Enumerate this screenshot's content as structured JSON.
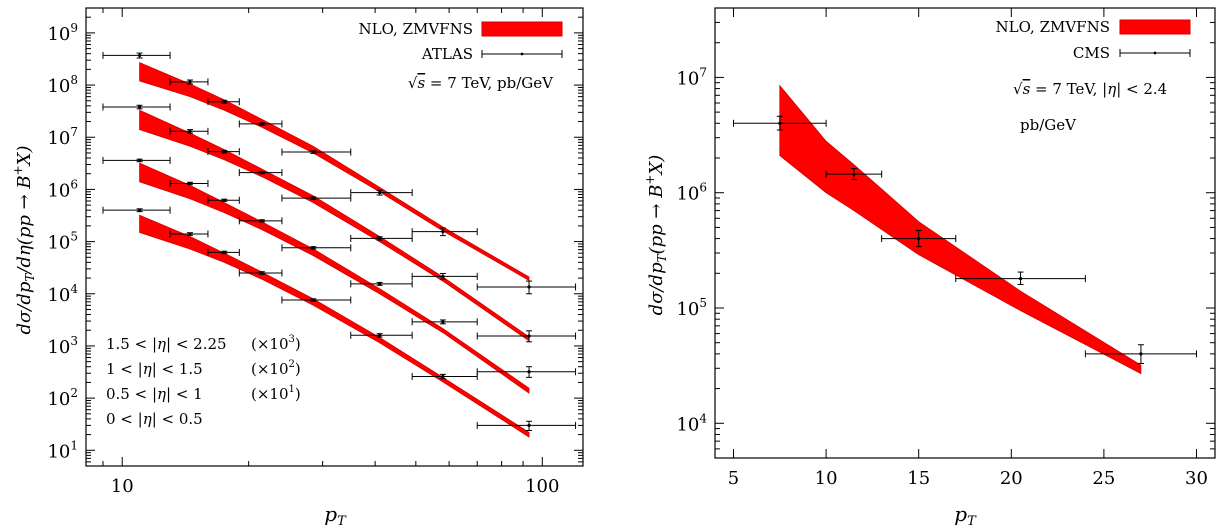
{
  "chart_data": [
    {
      "type": "line",
      "xscale": "log",
      "yscale": "log",
      "xlim": [
        8.2,
        125
      ],
      "ylim": [
        5,
        3000000000
      ],
      "x_ticks": [
        10,
        100
      ],
      "y_ticks": [
        10,
        100,
        1000,
        10000,
        100000,
        1000000,
        10000000,
        100000000,
        1000000000
      ],
      "x_tick_labels": [
        "10",
        "100"
      ],
      "y_tick_labels": [
        "10^1",
        "10^2",
        "10^3",
        "10^4",
        "10^5",
        "10^6",
        "10^7",
        "10^8",
        "10^9"
      ],
      "xlabel": "p_T",
      "ylabel": "dσ/dp_T/dη(pp → B^+X)",
      "legend": {
        "position": "top-right",
        "entries": [
          {
            "label": "NLO, ZMVFNS",
            "style": "band"
          },
          {
            "label": "ATLAS",
            "style": "errorbar"
          }
        ]
      },
      "annotation": "√s = 7 TeV, pb/GeV",
      "rapidity_labels": [
        {
          "range": "1.5 < |η| < 2.25",
          "scale": "(×10^3)"
        },
        {
          "range": "1 < |η| < 1.5",
          "scale": "(×10^2)"
        },
        {
          "range": "0.5 < |η| < 1",
          "scale": "(×10^1)"
        },
        {
          "range": "0 < |η| < 0.5",
          "scale": ""
        }
      ],
      "band_color": "#ff0000",
      "band_edge_color": "#d40000",
      "data_series": [
        {
          "points": [
            {
              "x": 11,
              "xlo": 9,
              "xhi": 13,
              "y": 370000000,
              "ylo": 330000000,
              "yhi": 410000000
            },
            {
              "x": 14.5,
              "xlo": 13,
              "xhi": 16,
              "y": 115000000,
              "ylo": 105000000,
              "yhi": 125000000
            },
            {
              "x": 17.5,
              "xlo": 16,
              "xhi": 19,
              "y": 48000000,
              "ylo": 45000000,
              "yhi": 51000000
            },
            {
              "x": 21.5,
              "xlo": 19,
              "xhi": 24,
              "y": 18000000,
              "ylo": 17000000,
              "yhi": 19000000
            },
            {
              "x": 28.5,
              "xlo": 24,
              "xhi": 35,
              "y": 5200000,
              "ylo": 4900000,
              "yhi": 5500000
            },
            {
              "x": 41,
              "xlo": 35,
              "xhi": 49,
              "y": 870000,
              "ylo": 780000,
              "yhi": 960000
            },
            {
              "x": 58,
              "xlo": 49,
              "xhi": 70,
              "y": 155000,
              "ylo": 130000,
              "yhi": 182000
            },
            {
              "x": 93,
              "xlo": 70,
              "xhi": 120,
              "y": 13500,
              "ylo": 10000,
              "yhi": 17500
            }
          ]
        },
        {
          "points": [
            {
              "x": 11,
              "xlo": 9,
              "xhi": 13,
              "y": 38000000,
              "ylo": 35000000,
              "yhi": 41000000
            },
            {
              "x": 14.5,
              "xlo": 13,
              "xhi": 16,
              "y": 13000000,
              "ylo": 12000000,
              "yhi": 14000000
            },
            {
              "x": 17.5,
              "xlo": 16,
              "xhi": 19,
              "y": 5300000,
              "ylo": 5000000,
              "yhi": 5600000
            },
            {
              "x": 21.5,
              "xlo": 19,
              "xhi": 24,
              "y": 2100000,
              "ylo": 2000000,
              "yhi": 2200000
            },
            {
              "x": 28.5,
              "xlo": 24,
              "xhi": 35,
              "y": 680000,
              "ylo": 640000,
              "yhi": 720000
            },
            {
              "x": 41,
              "xlo": 35,
              "xhi": 49,
              "y": 115000,
              "ylo": 107000,
              "yhi": 124000
            },
            {
              "x": 58,
              "xlo": 49,
              "xhi": 70,
              "y": 21500,
              "ylo": 19000,
              "yhi": 24500
            },
            {
              "x": 93,
              "xlo": 70,
              "xhi": 120,
              "y": 1550,
              "ylo": 1200,
              "yhi": 1950
            }
          ]
        },
        {
          "points": [
            {
              "x": 11,
              "xlo": 9,
              "xhi": 13,
              "y": 3600000,
              "ylo": 3400000,
              "yhi": 3800000
            },
            {
              "x": 14.5,
              "xlo": 13,
              "xhi": 16,
              "y": 1300000,
              "ylo": 1230000,
              "yhi": 1370000
            },
            {
              "x": 17.5,
              "xlo": 16,
              "xhi": 19,
              "y": 620000,
              "ylo": 590000,
              "yhi": 650000
            },
            {
              "x": 21.5,
              "xlo": 19,
              "xhi": 24,
              "y": 250000,
              "ylo": 238000,
              "yhi": 262000
            },
            {
              "x": 28.5,
              "xlo": 24,
              "xhi": 35,
              "y": 76000,
              "ylo": 72000,
              "yhi": 80000
            },
            {
              "x": 41,
              "xlo": 35,
              "xhi": 49,
              "y": 15500,
              "ylo": 14500,
              "yhi": 16500
            },
            {
              "x": 58,
              "xlo": 49,
              "xhi": 70,
              "y": 2900,
              "ylo": 2650,
              "yhi": 3150
            },
            {
              "x": 93,
              "xlo": 70,
              "xhi": 120,
              "y": 320,
              "ylo": 250,
              "yhi": 400
            }
          ]
        },
        {
          "points": [
            {
              "x": 11,
              "xlo": 9,
              "xhi": 13,
              "y": 400000,
              "ylo": 375000,
              "yhi": 425000
            },
            {
              "x": 14.5,
              "xlo": 13,
              "xhi": 16,
              "y": 140000,
              "ylo": 132000,
              "yhi": 148000
            },
            {
              "x": 17.5,
              "xlo": 16,
              "xhi": 19,
              "y": 62000,
              "ylo": 58500,
              "yhi": 65500
            },
            {
              "x": 21.5,
              "xlo": 19,
              "xhi": 24,
              "y": 25000,
              "ylo": 23500,
              "yhi": 26500
            },
            {
              "x": 28.5,
              "xlo": 24,
              "xhi": 35,
              "y": 7600,
              "ylo": 7200,
              "yhi": 8000
            },
            {
              "x": 41,
              "xlo": 35,
              "xhi": 49,
              "y": 1600,
              "ylo": 1480,
              "yhi": 1720
            },
            {
              "x": 58,
              "xlo": 49,
              "xhi": 70,
              "y": 260,
              "ylo": 235,
              "yhi": 285
            },
            {
              "x": 93,
              "xlo": 70,
              "xhi": 120,
              "y": 30,
              "ylo": 24,
              "yhi": 36
            }
          ]
        }
      ],
      "theory_bands": [
        {
          "upper": [
            [
              11,
              270000000
            ],
            [
              14.5,
              105000000
            ],
            [
              17.5,
              52000000
            ],
            [
              21.5,
              22000000
            ],
            [
              28.5,
              6700000
            ],
            [
              41,
              1100000
            ],
            [
              58,
              190000
            ],
            [
              93,
              21000
            ]
          ],
          "lower": [
            [
              11,
              120000000
            ],
            [
              14.5,
              60000000
            ],
            [
              17.5,
              33000000
            ],
            [
              21.5,
              15500000
            ],
            [
              28.5,
              5000000
            ],
            [
              41,
              900000
            ],
            [
              58,
              160000
            ],
            [
              93,
              18000
            ]
          ]
        },
        {
          "upper": [
            [
              11,
              33000000
            ],
            [
              14.5,
              12000000
            ],
            [
              17.5,
              5800000
            ],
            [
              21.5,
              2450000
            ],
            [
              28.5,
              750000
            ],
            [
              41,
              125000
            ],
            [
              58,
              21000
            ],
            [
              93,
              1500
            ]
          ],
          "lower": [
            [
              11,
              14000000
            ],
            [
              14.5,
              6700000
            ],
            [
              17.5,
              3700000
            ],
            [
              21.5,
              1750000
            ],
            [
              28.5,
              560000
            ],
            [
              41,
              100000
            ],
            [
              58,
              17500
            ],
            [
              93,
              1250
            ]
          ]
        },
        {
          "upper": [
            [
              11,
              3200000
            ],
            [
              14.5,
              1200000
            ],
            [
              17.5,
              560000
            ],
            [
              21.5,
              240000
            ],
            [
              28.5,
              72000
            ],
            [
              41,
              12500
            ],
            [
              58,
              2150
            ],
            [
              93,
              155
            ]
          ],
          "lower": [
            [
              11,
              1400000
            ],
            [
              14.5,
              660000
            ],
            [
              17.5,
              360000
            ],
            [
              21.5,
              170000
            ],
            [
              28.5,
              54000
            ],
            [
              41,
              10000
            ],
            [
              58,
              1800
            ],
            [
              93,
              125
            ]
          ]
        },
        {
          "upper": [
            [
              11,
              320000
            ],
            [
              14.5,
              125000
            ],
            [
              17.5,
              60000
            ],
            [
              21.5,
              26000
            ],
            [
              28.5,
              8000
            ],
            [
              41,
              1450
            ],
            [
              58,
              250
            ],
            [
              93,
              22
            ]
          ],
          "lower": [
            [
              11,
              150000
            ],
            [
              14.5,
              72000
            ],
            [
              17.5,
              40000
            ],
            [
              21.5,
              19000
            ],
            [
              28.5,
              6000
            ],
            [
              41,
              1150
            ],
            [
              58,
              205
            ],
            [
              93,
              18
            ]
          ]
        }
      ]
    },
    {
      "type": "line",
      "xscale": "linear",
      "yscale": "log",
      "xlim": [
        4,
        31
      ],
      "ylim": [
        5000,
        40000000
      ],
      "x_ticks": [
        5,
        10,
        15,
        20,
        25,
        30
      ],
      "x_tick_labels": [
        "5",
        "10",
        "15",
        "20",
        "25",
        "30"
      ],
      "y_ticks": [
        10000,
        100000,
        1000000,
        10000000
      ],
      "y_tick_labels": [
        "10^4",
        "10^5",
        "10^6",
        "10^7"
      ],
      "xlabel": "p_T",
      "ylabel": "dσ/dp_T(pp → B^+X)",
      "legend": {
        "position": "top-right",
        "entries": [
          {
            "label": "NLO, ZMVFNS",
            "style": "band"
          },
          {
            "label": "CMS",
            "style": "errorbar"
          }
        ]
      },
      "annotation_lines": [
        "√s = 7 TeV, |η| < 2.4",
        "pb/GeV"
      ],
      "band_color": "#ff0000",
      "band_edge_color": "#d40000",
      "data_series": [
        {
          "points": [
            {
              "x": 7.5,
              "xlo": 5,
              "xhi": 10,
              "y": 4000000,
              "ylo": 3500000,
              "yhi": 4600000
            },
            {
              "x": 11.5,
              "xlo": 10,
              "xhi": 13,
              "y": 1450000,
              "ylo": 1300000,
              "yhi": 1620000
            },
            {
              "x": 15,
              "xlo": 13,
              "xhi": 17,
              "y": 400000,
              "ylo": 340000,
              "yhi": 470000
            },
            {
              "x": 20.5,
              "xlo": 17,
              "xhi": 24,
              "y": 180000,
              "ylo": 160000,
              "yhi": 205000
            },
            {
              "x": 27,
              "xlo": 24,
              "xhi": 30,
              "y": 40000,
              "ylo": 33000,
              "yhi": 48000
            }
          ]
        }
      ],
      "theory_bands": [
        {
          "upper": [
            [
              7.5,
              8500000
            ],
            [
              10,
              2800000
            ],
            [
              11.5,
              1750000
            ],
            [
              15,
              560000
            ],
            [
              20.5,
              140000
            ],
            [
              27,
              32000
            ]
          ],
          "lower": [
            [
              7.5,
              2100000
            ],
            [
              10,
              1000000
            ],
            [
              11.5,
              700000
            ],
            [
              15,
              290000
            ],
            [
              20.5,
              95000
            ],
            [
              27,
              27000
            ]
          ]
        }
      ]
    }
  ]
}
